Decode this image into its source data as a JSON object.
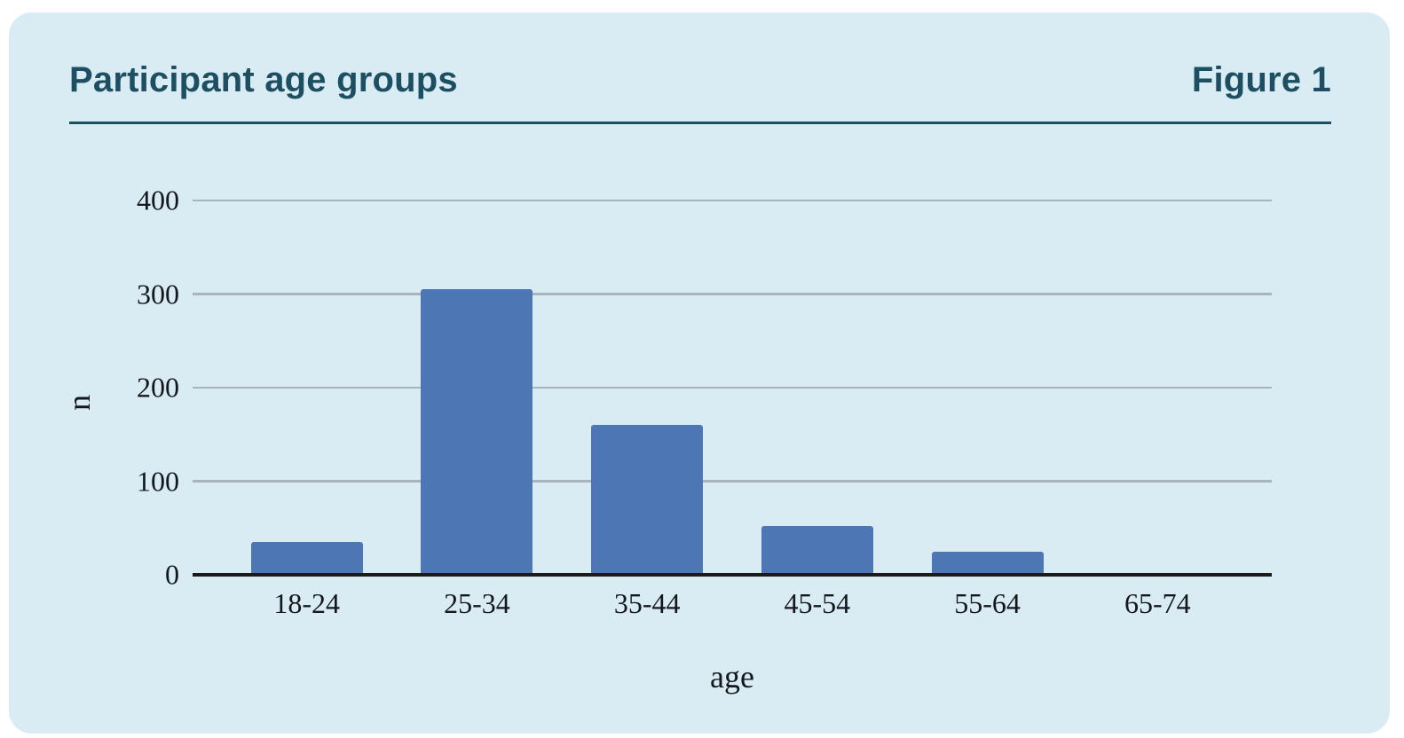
{
  "header": {
    "title": "Participant age groups",
    "figure_label": "Figure 1"
  },
  "colors": {
    "card_bg": "#d9ecf4",
    "heading": "#1d4f63",
    "bar": "#4c77b4",
    "gridline": "#a9b4ba",
    "axis": "#1b1b1b",
    "tick_text": "#14181c"
  },
  "chart_data": {
    "type": "bar",
    "categories": [
      "18-24",
      "25-34",
      "35-44",
      "45-54",
      "55-64",
      "65-74"
    ],
    "values": [
      35,
      305,
      160,
      52,
      25,
      2
    ],
    "title": "Participant age groups",
    "xlabel": "age",
    "ylabel": "n",
    "ylim": [
      0,
      400
    ],
    "yticks": [
      0,
      100,
      200,
      300,
      400
    ],
    "grid": true,
    "legend_position": "none",
    "bar_color": "#4c77b4"
  }
}
